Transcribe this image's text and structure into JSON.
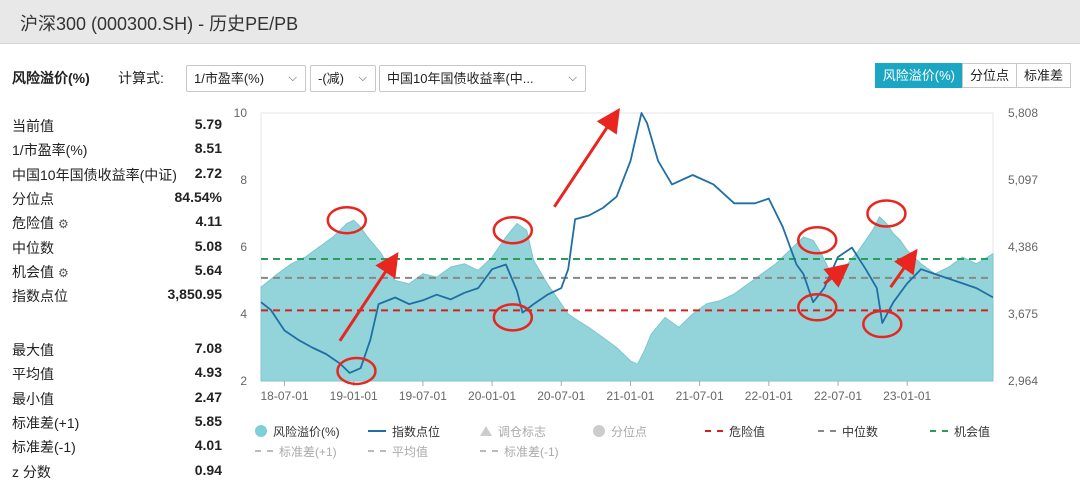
{
  "window": {
    "title": "沪深300 (000300.SH) - 历史PE/PB"
  },
  "toolbar": {
    "label": "风险溢价(%)",
    "calc_label": "计算式:",
    "select1": "1/市盈率(%)",
    "select2": "-(减)",
    "select3": "中国10年国债收益率(中..."
  },
  "tabs": [
    {
      "label": "风险溢价(%)",
      "active": true
    },
    {
      "label": "分位点",
      "active": false
    },
    {
      "label": "标准差",
      "active": false
    }
  ],
  "stats_top": [
    {
      "label": "当前值",
      "value": "5.79"
    },
    {
      "label": "1/市盈率(%)",
      "value": "8.51"
    },
    {
      "label": "中国10年国债收益率(中证)",
      "value": "2.72"
    },
    {
      "label": "分位点",
      "value": "84.54%"
    },
    {
      "label": "危险值",
      "value": "4.11",
      "gear": true
    },
    {
      "label": "中位数",
      "value": "5.08"
    },
    {
      "label": "机会值",
      "value": "5.64",
      "gear": true
    },
    {
      "label": "指数点位",
      "value": "3,850.95"
    }
  ],
  "stats_bottom": [
    {
      "label": "最大值",
      "value": "7.08"
    },
    {
      "label": "平均值",
      "value": "4.93"
    },
    {
      "label": "最小值",
      "value": "2.47"
    },
    {
      "label": "标准差(+1)",
      "value": "5.85"
    },
    {
      "label": "标准差(-1)",
      "value": "4.01"
    },
    {
      "label": "z 分数",
      "value": "0.94"
    }
  ],
  "icons": {
    "gear": "gear-icon",
    "chevron": "chevron-down-icon"
  },
  "legend": [
    {
      "label": "风险溢价(%)",
      "kind": "dot",
      "color": "#7fcfd8",
      "dim": false
    },
    {
      "label": "指数点位",
      "kind": "line",
      "color": "#1f6fa5",
      "dim": false
    },
    {
      "label": "调仓标志",
      "kind": "tri",
      "color": "#cccccc",
      "dim": true
    },
    {
      "label": "分位点",
      "kind": "dot",
      "color": "#cccccc",
      "dim": true
    },
    {
      "label": "危险值",
      "kind": "dash",
      "color": "#d62020",
      "dim": false
    },
    {
      "label": "中位数",
      "kind": "dash",
      "color": "#888888",
      "dim": false
    },
    {
      "label": "机会值",
      "kind": "dash",
      "color": "#2a9d5a",
      "dim": false
    },
    {
      "label": "标准差(+1)",
      "kind": "dash",
      "color": "#bbbbbb",
      "dim": true
    },
    {
      "label": "平均值",
      "kind": "dash",
      "color": "#bbbbbb",
      "dim": true
    },
    {
      "label": "标准差(-1)",
      "kind": "dash",
      "color": "#bbbbbb",
      "dim": true
    }
  ],
  "chart_data": {
    "type": "area",
    "x_tick_labels": [
      "18-07-01",
      "19-01-01",
      "19-07-01",
      "20-01-01",
      "20-07-01",
      "21-01-01",
      "21-07-01",
      "22-01-01",
      "22-07-01",
      "23-01-01"
    ],
    "y_left": {
      "ticks": [
        2,
        4,
        6,
        8,
        10
      ],
      "range": [
        2,
        10
      ]
    },
    "y_right": {
      "ticks": [
        "2,964",
        "3,675",
        "4,386",
        "5,097",
        "5,808"
      ],
      "range": [
        2964,
        5808
      ]
    },
    "x_range": [
      2018.33,
      2023.62
    ],
    "grid": false,
    "colors": {
      "area": "#93d3da",
      "index": "#1f6fa5",
      "danger": "#d62020",
      "median": "#888888",
      "opportunity": "#2a9d5a",
      "annotation": "#e8251f"
    },
    "reference_lines": [
      {
        "name": "危险值",
        "value": 4.11
      },
      {
        "name": "中位数",
        "value": 5.08
      },
      {
        "name": "机会值",
        "value": 5.64
      }
    ],
    "series": [
      {
        "name": "风险溢价(%)",
        "axis": "left",
        "x": [
          2018.33,
          2018.45,
          2018.55,
          2018.65,
          2018.75,
          2018.85,
          2018.95,
          2019.0,
          2019.05,
          2019.1,
          2019.2,
          2019.3,
          2019.4,
          2019.5,
          2019.6,
          2019.7,
          2019.8,
          2019.9,
          2020.0,
          2020.1,
          2020.18,
          2020.25,
          2020.3,
          2020.4,
          2020.5,
          2020.55,
          2020.62,
          2020.7,
          2020.8,
          2020.9,
          2021.0,
          2021.05,
          2021.1,
          2021.15,
          2021.25,
          2021.35,
          2021.45,
          2021.55,
          2021.65,
          2021.75,
          2021.85,
          2021.95,
          2022.05,
          2022.15,
          2022.25,
          2022.32,
          2022.38,
          2022.45,
          2022.55,
          2022.65,
          2022.75,
          2022.8,
          2022.85,
          2022.9,
          2022.95,
          2023.0,
          2023.1,
          2023.2,
          2023.3,
          2023.4,
          2023.5,
          2023.62
        ],
        "y": [
          4.8,
          5.2,
          5.5,
          5.7,
          6.0,
          6.3,
          6.7,
          6.8,
          6.6,
          6.3,
          5.8,
          5.0,
          4.9,
          5.2,
          5.1,
          5.4,
          5.5,
          5.3,
          5.7,
          6.3,
          6.7,
          6.5,
          5.6,
          4.9,
          4.3,
          4.0,
          3.8,
          3.6,
          3.3,
          3.0,
          2.6,
          2.5,
          2.9,
          3.4,
          3.9,
          3.6,
          4.0,
          4.3,
          4.4,
          4.6,
          4.9,
          5.2,
          5.5,
          5.9,
          6.3,
          6.2,
          5.8,
          5.2,
          5.4,
          5.9,
          6.5,
          6.9,
          6.7,
          6.4,
          6.2,
          5.9,
          5.5,
          5.2,
          5.4,
          5.7,
          5.5,
          5.8
        ]
      },
      {
        "name": "指数点位",
        "axis": "right",
        "x": [
          2018.33,
          2018.4,
          2018.5,
          2018.6,
          2018.7,
          2018.8,
          2018.9,
          2018.97,
          2019.05,
          2019.12,
          2019.18,
          2019.3,
          2019.4,
          2019.5,
          2019.6,
          2019.7,
          2019.8,
          2019.9,
          2020.0,
          2020.1,
          2020.18,
          2020.22,
          2020.3,
          2020.4,
          2020.5,
          2020.55,
          2020.6,
          2020.7,
          2020.8,
          2020.9,
          2021.0,
          2021.08,
          2021.12,
          2021.2,
          2021.3,
          2021.45,
          2021.6,
          2021.75,
          2021.9,
          2022.0,
          2022.1,
          2022.2,
          2022.25,
          2022.32,
          2022.4,
          2022.5,
          2022.6,
          2022.7,
          2022.78,
          2022.82,
          2022.9,
          2023.0,
          2023.1,
          2023.2,
          2023.3,
          2023.4,
          2023.5,
          2023.62
        ],
        "y": [
          3800,
          3720,
          3500,
          3400,
          3320,
          3250,
          3150,
          3050,
          3100,
          3400,
          3780,
          3850,
          3780,
          3820,
          3880,
          3830,
          3900,
          3950,
          4150,
          4200,
          3920,
          3690,
          3780,
          3880,
          3950,
          4150,
          4680,
          4720,
          4800,
          4920,
          5300,
          5808,
          5700,
          5300,
          5050,
          5150,
          5050,
          4850,
          4850,
          4900,
          4600,
          4200,
          4100,
          3800,
          3950,
          4280,
          4380,
          4150,
          3950,
          3580,
          3800,
          4000,
          4150,
          4100,
          4050,
          4000,
          3950,
          3851
        ]
      }
    ],
    "annotations": [
      {
        "kind": "circle",
        "x": 2018.95,
        "y": 6.8
      },
      {
        "kind": "circle",
        "x": 2019.02,
        "y": 2.3
      },
      {
        "kind": "circle",
        "x": 2020.15,
        "y": 6.5
      },
      {
        "kind": "circle",
        "x": 2020.15,
        "y": 3.9
      },
      {
        "kind": "circle",
        "x": 2022.35,
        "y": 6.2
      },
      {
        "kind": "circle",
        "x": 2022.35,
        "y": 4.2
      },
      {
        "kind": "circle",
        "x": 2022.85,
        "y": 7.0
      },
      {
        "kind": "circle",
        "x": 2022.82,
        "y": 3.7
      },
      {
        "kind": "arrow",
        "x1": 2018.9,
        "y1": 3.2,
        "x2": 2019.3,
        "y2": 5.7
      },
      {
        "kind": "arrow",
        "x1": 2020.45,
        "y1": 7.2,
        "x2": 2020.9,
        "y2": 10.0
      },
      {
        "kind": "arrow",
        "x1": 2022.4,
        "y1": 4.9,
        "x2": 2022.55,
        "y2": 5.4
      },
      {
        "kind": "arrow",
        "x1": 2022.88,
        "y1": 4.8,
        "x2": 2023.05,
        "y2": 5.8
      }
    ]
  }
}
